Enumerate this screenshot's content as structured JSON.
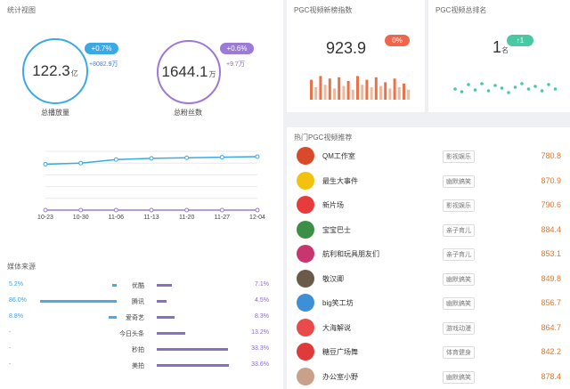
{
  "left": {
    "title": "统计视图",
    "circle1": {
      "value": "122.3",
      "unit": "亿",
      "label": "总播放量",
      "pill": "+0.7%",
      "sub": "+8082.9万",
      "color": "#3aa9e6",
      "pill_color": "#3aa9e6"
    },
    "circle2": {
      "value": "1644.1",
      "unit": "万",
      "label": "总粉丝数",
      "pill": "+0.6%",
      "sub": "+9.7万",
      "color": "#9b7ad8",
      "pill_color": "#9b7ad8"
    },
    "line_chart": {
      "type": "line",
      "x": [
        "10-23",
        "10-30",
        "11-06",
        "11-13",
        "11-20",
        "11-27",
        "12-04"
      ],
      "series": [
        {
          "values": [
            0.78,
            0.8,
            0.86,
            0.88,
            0.89,
            0.9,
            0.91
          ],
          "color": "#3aa9e6"
        },
        {
          "values": [
            0.0,
            0.0,
            0.0,
            0.0,
            0.0,
            0.0,
            0.0
          ],
          "color": "#9b7ad8"
        }
      ]
    },
    "media": {
      "title": "媒体来源",
      "rows": [
        {
          "name": "优酷",
          "left": "5.2%",
          "left_v": 5.2,
          "right": "7.1%",
          "right_v": 7.1
        },
        {
          "name": "腾讯",
          "left": "86.0%",
          "left_v": 86.0,
          "right": "4.5%",
          "right_v": 4.5
        },
        {
          "name": "爱奇艺",
          "left": "8.8%",
          "left_v": 8.8,
          "right": "8.3%",
          "right_v": 8.3
        },
        {
          "name": "今日头条",
          "left": "-",
          "left_v": 0,
          "right": "13.2%",
          "right_v": 13.2
        },
        {
          "name": "秒拍",
          "left": "-",
          "left_v": 0,
          "right": "33.3%",
          "right_v": 33.3
        },
        {
          "name": "美拍",
          "left": "-",
          "left_v": 0,
          "right": "33.6%",
          "right_v": 33.6
        }
      ]
    }
  },
  "pgc_index": {
    "title": "PGC视频新榜指数",
    "value": "923.9",
    "pill": "0%",
    "pill_color": "#f0664a",
    "bars": [
      0.8,
      0.5,
      0.95,
      0.6,
      0.85,
      0.45,
      0.9,
      0.55,
      0.75,
      0.4,
      0.95,
      0.6,
      0.8,
      0.5,
      0.9,
      0.55,
      0.7,
      0.45,
      0.85,
      0.5,
      0.65,
      0.4
    ]
  },
  "pgc_rank": {
    "title": "PGC视频总排名",
    "value": "1",
    "unit": "名",
    "pill": "↑1",
    "pill_color": "#48c9a2",
    "dots": [
      0.3,
      0.15,
      0.55,
      0.25,
      0.6,
      0.2,
      0.5,
      0.35,
      0.1,
      0.4,
      0.6,
      0.3,
      0.45,
      0.2,
      0.55,
      0.3
    ]
  },
  "hot": {
    "title": "热门PGC视频推荐",
    "rows": [
      {
        "name": "QM工作室",
        "tag": "影视娱乐",
        "score": "780.8",
        "color": "#d94a2a"
      },
      {
        "name": "最生大事件",
        "tag": "幽默搞笑",
        "score": "870.9",
        "color": "#f2c20e"
      },
      {
        "name": "新片场",
        "tag": "影视娱乐",
        "score": "790.6",
        "color": "#e83b3b"
      },
      {
        "name": "宝宝巴士",
        "tag": "亲子育儿",
        "score": "884.4",
        "color": "#3b8f46"
      },
      {
        "name": "航利和玩具朋友们",
        "tag": "亲子育儿",
        "score": "853.1",
        "color": "#c9356e"
      },
      {
        "name": "敬汉卿",
        "tag": "幽默搞笑",
        "score": "849.8",
        "color": "#6b5a4a"
      },
      {
        "name": "big笑工坊",
        "tag": "幽默搞笑",
        "score": "856.7",
        "color": "#3d8fd8"
      },
      {
        "name": "大海解说",
        "tag": "游戏动漫",
        "score": "864.7",
        "color": "#e94a4a"
      },
      {
        "name": "糖豆广场舞",
        "tag": "体育健身",
        "score": "842.2",
        "color": "#e03a3a"
      },
      {
        "name": "办公室小野",
        "tag": "幽默搞笑",
        "score": "878.4",
        "color": "#c9a08a"
      }
    ]
  }
}
